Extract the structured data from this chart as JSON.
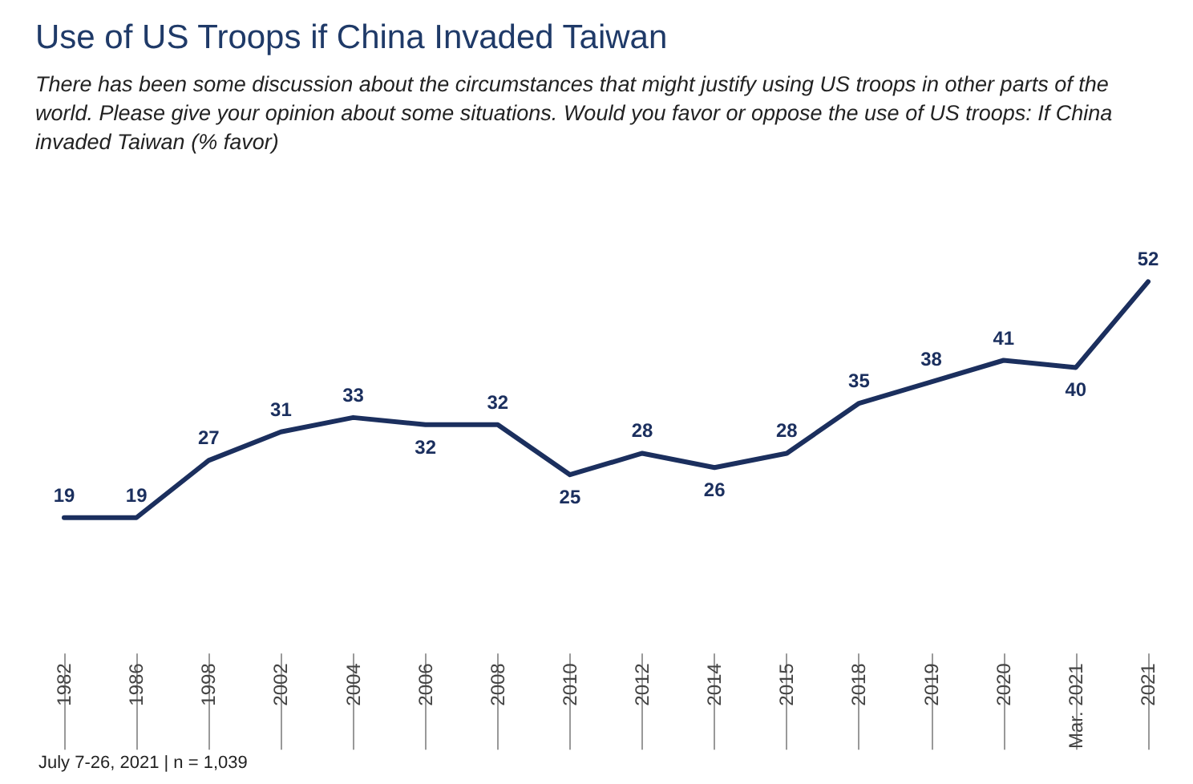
{
  "chart_data": {
    "type": "line",
    "title": "Use of US Troops if China Invaded Taiwan",
    "subtitle": "There has been some discussion about the circumstances that might justify using US troops in other parts of the world. Please give your opinion about some situations. Would you favor or oppose the use of US troops: If China invaded Taiwan (% favor)",
    "categories": [
      "1982",
      "1986",
      "1998",
      "2002",
      "2004",
      "2006",
      "2008",
      "2010",
      "2012",
      "2014",
      "2015",
      "2018",
      "2019",
      "2020",
      "Mar. 2021",
      "2021"
    ],
    "series": [
      {
        "color": "#1b2f5e",
        "values": [
          19,
          19,
          27,
          31,
          33,
          32,
          32,
          25,
          28,
          26,
          28,
          35,
          38,
          41,
          40,
          52
        ]
      }
    ],
    "data_labels": true,
    "marker": "none",
    "grid": false,
    "tick_labels": "x",
    "annotations": [
      "July 7-26, 2021 | n = 1,039"
    ]
  }
}
